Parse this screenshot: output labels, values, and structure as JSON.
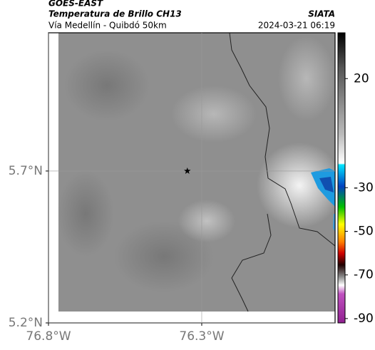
{
  "header": {
    "source": "GOES-EAST",
    "title": "Temperatura de Brillo CH13",
    "subtitle": "Vía Medellín - Quibdó 50km",
    "org": "SIATA",
    "datetime": "2024-03-21 06:19"
  },
  "map": {
    "xlim": [
      -76.8,
      -75.865
    ],
    "ylim": [
      5.2,
      6.155
    ],
    "xticks": [
      {
        "value": -76.8,
        "label": "76.8°W"
      },
      {
        "value": -76.3,
        "label": "76.3°W"
      }
    ],
    "yticks": [
      {
        "value": 5.7,
        "label": "5.7°N"
      },
      {
        "value": 5.2,
        "label": "5.2°N"
      }
    ],
    "marker": {
      "lon": -76.347,
      "lat": 5.7
    }
  },
  "colorbar": {
    "lim": [
      -92,
      41
    ],
    "ticks": [
      20,
      -30,
      -50,
      -70,
      -90
    ]
  }
}
